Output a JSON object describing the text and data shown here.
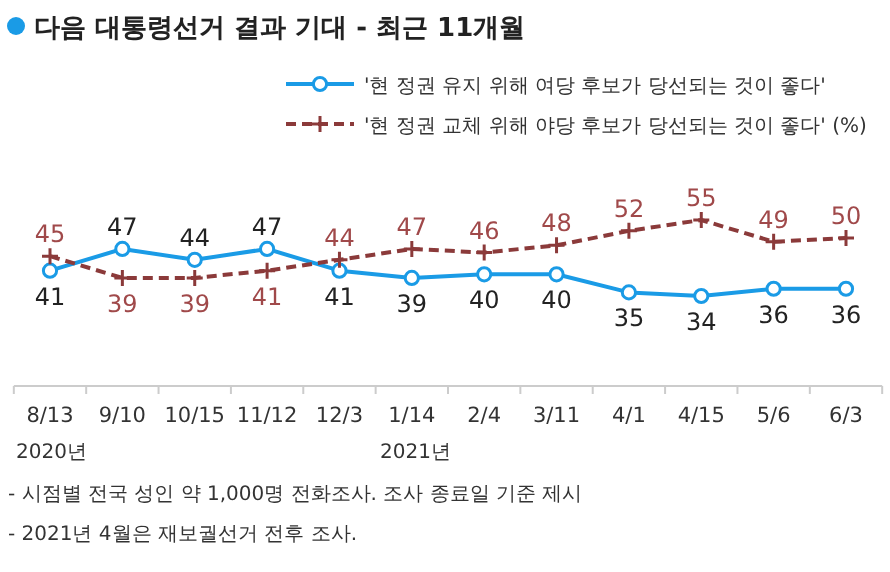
{
  "chart_data": {
    "type": "line",
    "title": "다음 대통령선거 결과 기대 - 최근 11개월",
    "categories": [
      "8/13",
      "9/10",
      "10/15",
      "11/12",
      "12/3",
      "1/14",
      "2/4",
      "3/11",
      "4/1",
      "4/15",
      "5/6",
      "6/3"
    ],
    "series": [
      {
        "name": "'현 정권 유지 위해 여당 후보가 당선되는 것이 좋다'",
        "color": "#1a9be6",
        "marker": "circle",
        "line_style": "solid",
        "values": [
          41,
          47,
          44,
          47,
          41,
          39,
          40,
          40,
          35,
          34,
          36,
          36
        ]
      },
      {
        "name": "'현 정권 교체 위해 야당 후보가 당선되는 것이 좋다' (%)",
        "color": "#8b3a3a",
        "marker": "cross",
        "line_style": "dashed",
        "values": [
          45,
          39,
          39,
          41,
          44,
          47,
          46,
          48,
          52,
          55,
          49,
          50
        ]
      }
    ],
    "data_labels": true,
    "legend": "top right",
    "grid": false,
    "annotations": [
      "2020년",
      "2021년",
      "- 시점별 전국 성인 약 1,000명 전화조사. 조사 종료일 기준 제시",
      "- 2021년 4월은 재보궐선거 전후 조사."
    ]
  }
}
